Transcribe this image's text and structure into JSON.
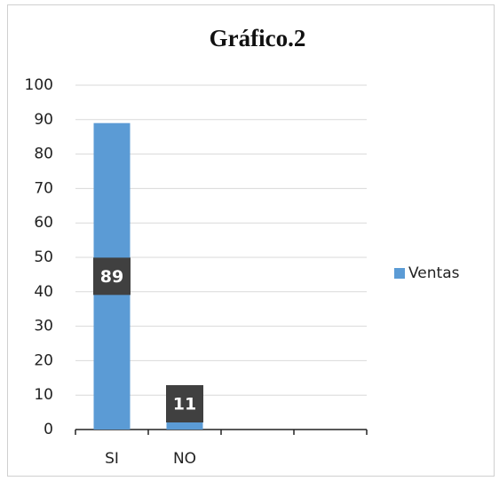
{
  "chart_data": {
    "type": "bar",
    "title": "Gráfico.2",
    "categories": [
      "SI",
      "NO",
      null,
      null
    ],
    "series": [
      {
        "name": "Ventas",
        "color": "#5b9bd5",
        "values": [
          89,
          11,
          null,
          null
        ]
      }
    ],
    "ylim": [
      0,
      100
    ],
    "yticks": [
      0,
      10,
      20,
      30,
      40,
      50,
      60,
      70,
      80,
      90,
      100
    ],
    "grid": true,
    "legend": "right",
    "data_labels": true
  }
}
